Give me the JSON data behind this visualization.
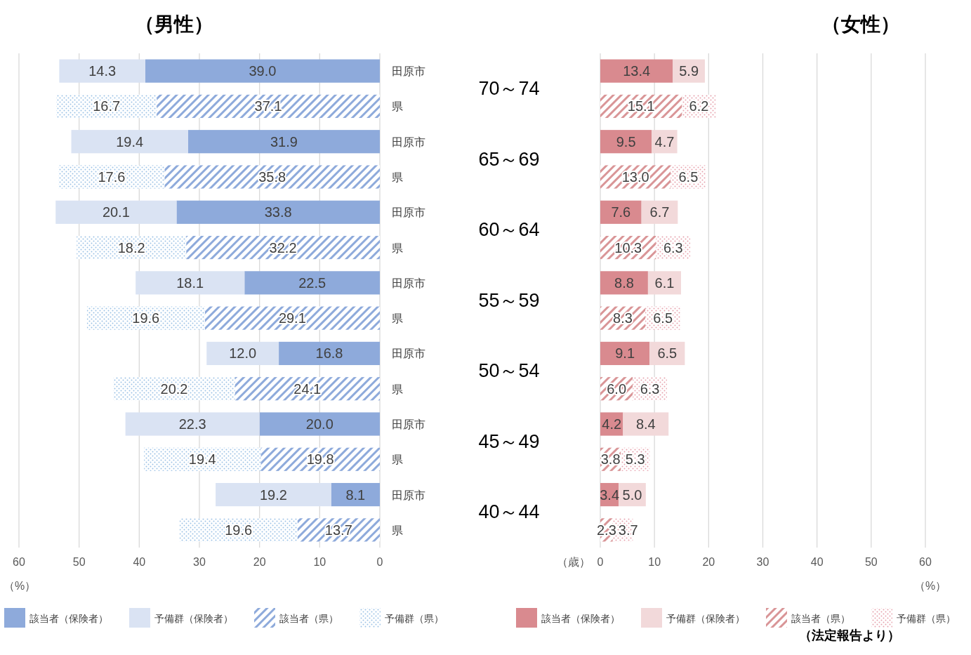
{
  "chart_data": [
    {
      "type": "bar",
      "orientation": "horizontal",
      "stacked": true,
      "title": "（男性）",
      "xlabel": "（%）",
      "categories": [
        "田原市",
        "県",
        "田原市",
        "県",
        "田原市",
        "県",
        "田原市",
        "県",
        "田原市",
        "県",
        "田原市",
        "県",
        "田原市",
        "県"
      ],
      "xlim": [
        60,
        0
      ],
      "xticks": [
        60,
        50,
        40,
        30,
        20,
        10,
        0
      ],
      "grid": "x",
      "legend": "bottom",
      "series": [
        {
          "name": "該当者（保険者）",
          "color": "#8eaadb",
          "values": [
            39.0,
            null,
            31.9,
            null,
            33.8,
            null,
            22.5,
            null,
            16.8,
            null,
            20.0,
            null,
            8.1,
            null
          ],
          "value_labels": [
            "39.0",
            null,
            "31.9",
            null,
            "33.8",
            null,
            "22.5",
            null,
            "16.8",
            null,
            "20.0",
            null,
            "8.1",
            null
          ]
        },
        {
          "name": "予備群（保険者）",
          "color": "#dae3f3",
          "values": [
            14.3,
            null,
            19.4,
            null,
            20.1,
            null,
            18.1,
            null,
            12.0,
            null,
            22.3,
            null,
            19.2,
            null
          ],
          "value_labels": [
            "14.3",
            null,
            "19.4",
            null,
            "20.1",
            null,
            "18.1",
            null,
            "12.0",
            null,
            "22.3",
            null,
            "19.2",
            null
          ]
        },
        {
          "name": "該当者（県）",
          "color": "#8eaadb",
          "values": [
            null,
            37.1,
            null,
            35.8,
            null,
            32.2,
            null,
            29.1,
            null,
            24.1,
            null,
            19.8,
            null,
            13.7
          ],
          "value_labels": [
            null,
            "37.1",
            null,
            "35.8",
            null,
            "32.2",
            null,
            "29.1",
            null,
            "24.1",
            null,
            "19.8",
            null,
            "13.7"
          ]
        },
        {
          "name": "予備群（県）",
          "color": "#9dc3e6",
          "values": [
            null,
            16.7,
            null,
            17.6,
            null,
            18.2,
            null,
            19.6,
            null,
            20.2,
            null,
            19.4,
            null,
            19.6
          ],
          "value_labels": [
            null,
            "16.7",
            null,
            "17.6",
            null,
            "18.2",
            null,
            "19.6",
            null,
            "20.2",
            null,
            "19.4",
            null,
            "19.6"
          ]
        }
      ],
      "annotations": [
        "70～74",
        "65～69",
        "60～64",
        "55～59",
        "50～54",
        "45～49",
        "40～44"
      ]
    },
    {
      "type": "bar",
      "orientation": "horizontal",
      "stacked": true,
      "title": "（女性）",
      "xlabel": "（%）",
      "categories": [
        null,
        null,
        null,
        null,
        null,
        null,
        null,
        null,
        null,
        null,
        null,
        null,
        null,
        null
      ],
      "xlim": [
        0,
        60
      ],
      "xticks": [
        0,
        10,
        20,
        30,
        40,
        50,
        60
      ],
      "grid": "x",
      "legend": "bottom",
      "series": [
        {
          "name": "該当者（保険者）",
          "color": "#d98a8f",
          "values": [
            13.4,
            null,
            9.5,
            null,
            7.6,
            null,
            8.8,
            null,
            9.1,
            null,
            4.2,
            null,
            3.4,
            null
          ],
          "value_labels": [
            "13.4",
            null,
            "9.5",
            null,
            "7.6",
            null,
            "8.8",
            null,
            "9.1",
            null,
            "4.2",
            null,
            "3.4",
            null
          ]
        },
        {
          "name": "予備群（保険者）",
          "color": "#f2d9da",
          "values": [
            5.9,
            null,
            4.7,
            null,
            6.7,
            null,
            6.1,
            null,
            6.5,
            null,
            8.4,
            null,
            5.0,
            null
          ],
          "value_labels": [
            "5.9",
            null,
            "4.7",
            null,
            "6.7",
            null,
            "6.1",
            null,
            "6.5",
            null,
            "8.4",
            null,
            "5.0",
            null
          ]
        },
        {
          "name": "該当者（県）",
          "color": "#d99597",
          "values": [
            null,
            15.1,
            null,
            13.0,
            null,
            10.3,
            null,
            8.3,
            null,
            6.0,
            null,
            3.8,
            null,
            2.3
          ],
          "value_labels": [
            null,
            "15.1",
            null,
            "13.0",
            null,
            "10.3",
            null,
            "8.3",
            null,
            "6.0",
            null,
            "3.8",
            null,
            "2.3"
          ]
        },
        {
          "name": "予備群（県）",
          "color": "#e7a3ae",
          "values": [
            null,
            6.2,
            null,
            6.5,
            null,
            6.3,
            null,
            6.5,
            null,
            6.3,
            null,
            5.3,
            null,
            3.7
          ],
          "value_labels": [
            null,
            "6.2",
            null,
            "6.5",
            null,
            "6.3",
            null,
            "6.5",
            null,
            "6.3",
            null,
            "5.3",
            null,
            "3.7"
          ]
        }
      ],
      "annotations": [
        "（歳）",
        "（法定報告より）"
      ]
    }
  ]
}
